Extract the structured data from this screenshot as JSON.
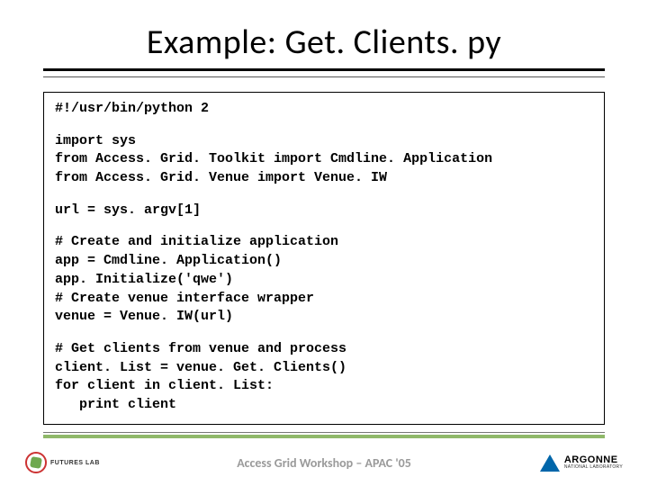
{
  "title": "Example: Get. Clients. py",
  "code": {
    "lines": [
      "#!/usr/bin/python 2",
      "",
      "import sys",
      "from Access. Grid. Toolkit import Cmdline. Application",
      "from Access. Grid. Venue import Venue. IW",
      "",
      "url = sys. argv[1]",
      "",
      "# Create and initialize application",
      "app = Cmdline. Application()",
      "app. Initialize('qwe')",
      "# Create venue interface wrapper",
      "venue = Venue. IW(url)",
      "",
      "# Get clients from venue and process",
      "client. List = venue. Get. Clients()",
      "for client in client. List:",
      "   print client"
    ]
  },
  "footer": {
    "center_text": "Access Grid Workshop – APAC '05",
    "logo_left_label": "FUTURES LAB",
    "logo_right_main": "ARGONNE",
    "logo_right_sub": "NATIONAL LABORATORY"
  },
  "colors": {
    "title_rule": "#000000",
    "accent_rule": "#8fb869",
    "footer_text": "#9a9a9a",
    "code_border": "#000000",
    "argonne_blue": "#0066aa",
    "futures_red": "#cc3333",
    "futures_green": "#6fa84f"
  }
}
